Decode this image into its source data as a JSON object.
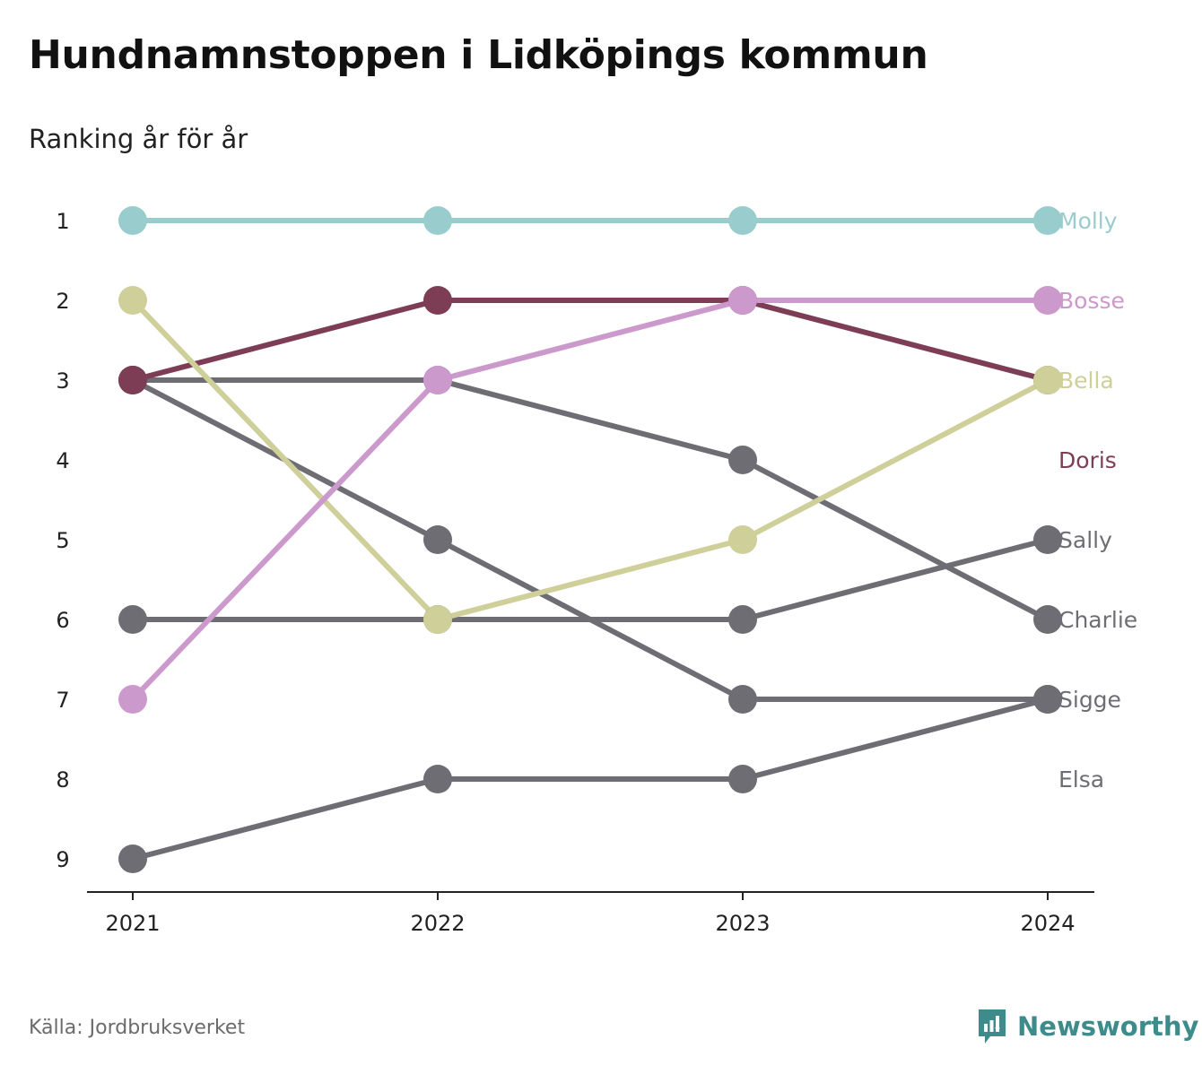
{
  "title": "Hundnamnstoppen i Lidköpings kommun",
  "subtitle": "Ranking år för år",
  "source": "Källa: Jordbruksverket",
  "brand": {
    "name": "Newsworthy",
    "icon": "newsworthy-logo-icon",
    "color": "#3d8b8b"
  },
  "chart_data": {
    "type": "line",
    "subtype": "bump",
    "title": "Hundnamnstoppen i Lidköpings kommun",
    "subtitle": "Ranking år för år",
    "x": [
      "2021",
      "2022",
      "2023",
      "2024"
    ],
    "y_ticks": [
      1,
      2,
      3,
      4,
      5,
      6,
      7,
      8,
      9
    ],
    "ylim": [
      1,
      9
    ],
    "y_reversed": true,
    "grid": false,
    "legend": "direct labels at right",
    "series": [
      {
        "name": "Elsa",
        "color": "#6e6d74",
        "values": [
          9,
          8,
          8,
          7
        ]
      },
      {
        "name": "Sigge",
        "color": "#6e6d74",
        "values": [
          3,
          5,
          7,
          7
        ]
      },
      {
        "name": "Charlie",
        "color": "#6e6d74",
        "values": [
          3,
          3,
          4,
          6
        ]
      },
      {
        "name": "Sally",
        "color": "#6e6d74",
        "values": [
          6,
          6,
          6,
          5
        ]
      },
      {
        "name": "Doris",
        "color": "#7d3d55",
        "values": [
          3,
          2,
          2,
          3
        ]
      },
      {
        "name": "Bella",
        "color": "#cfcf9a",
        "values": [
          2,
          6,
          5,
          3
        ]
      },
      {
        "name": "Bosse",
        "color": "#cc99cc",
        "values": [
          7,
          3,
          2,
          2
        ]
      },
      {
        "name": "Molly",
        "color": "#99cccc",
        "values": [
          1,
          1,
          1,
          1
        ]
      }
    ],
    "right_labels": [
      {
        "text": "Molly",
        "rank": 1,
        "color": "#99cccc"
      },
      {
        "text": "Bosse",
        "rank": 2,
        "color": "#cc99cc"
      },
      {
        "text": "Bella",
        "rank": 3,
        "color": "#cfcf9a"
      },
      {
        "text": "Doris",
        "rank": 4,
        "color": "#7d3d55"
      },
      {
        "text": "Sally",
        "rank": 5,
        "color": "#6e6d74"
      },
      {
        "text": "Charlie",
        "rank": 6,
        "color": "#6e6d74"
      },
      {
        "text": "Sigge",
        "rank": 7,
        "color": "#6e6d74"
      },
      {
        "text": "Elsa",
        "rank": 8,
        "color": "#6e6d74"
      }
    ]
  }
}
